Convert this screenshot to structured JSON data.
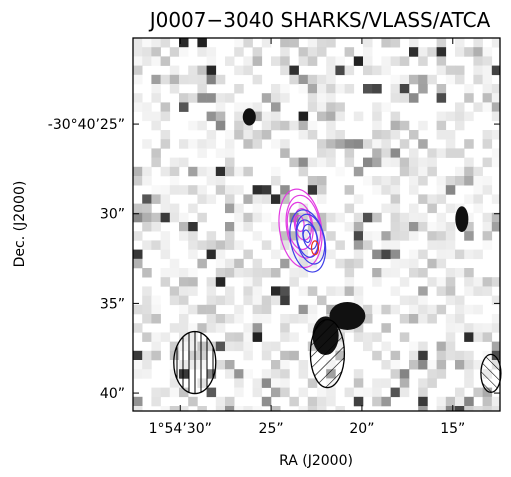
{
  "chart_data": {
    "type": "image",
    "title": "J0007−3040 SHARKS/VLASS/ATCA",
    "xlabel": "RA (J2000)",
    "ylabel": "Dec. (J2000)",
    "x_ticks": [
      {
        "label": "1°54’30”",
        "ra_s": 30
      },
      {
        "label": "25”",
        "ra_s": 25
      },
      {
        "label": "20”",
        "ra_s": 20
      },
      {
        "label": "15”",
        "ra_s": 15
      }
    ],
    "y_ticks": [
      {
        "label": "-30°40’25”",
        "dec_arcsec": 25
      },
      {
        "label": "30”",
        "dec_arcsec": 30
      },
      {
        "label": "35”",
        "dec_arcsec": 35
      },
      {
        "label": "40”",
        "dec_arcsec": 40
      }
    ],
    "xlim_ra_s": [
      32.6,
      12.4
    ],
    "ylim_dec_arcsec": [
      20.2,
      41.0
    ],
    "background": "greyscale near-infrared image (SHARKS), inverted",
    "contours": [
      {
        "survey": "VLASS",
        "color": "#e23ce2",
        "center": [
          23.3,
          30.8
        ],
        "levels": 5
      },
      {
        "survey": "ATCA",
        "color": "#3f3fe8",
        "center": [
          22.9,
          31.5
        ],
        "levels": 5
      },
      {
        "survey": "ATCA",
        "color": "#e8321e",
        "center": [
          22.5,
          31.9
        ],
        "levels": 1
      }
    ],
    "beams": [
      {
        "center": [
          29.2,
          38.3
        ],
        "hatch": "vertical"
      },
      {
        "center": [
          21.9,
          37.8
        ],
        "hatch": "diagonal"
      },
      {
        "center": [
          12.9,
          38.9
        ],
        "hatch": "anti-diagonal"
      }
    ],
    "grid": false
  }
}
